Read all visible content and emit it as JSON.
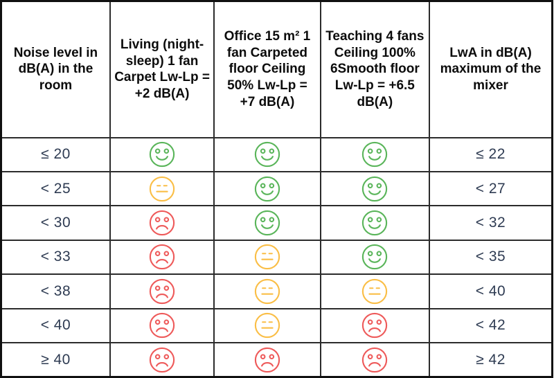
{
  "table": {
    "columns": [
      {
        "header": "Noise level in dB(A) in the room"
      },
      {
        "header": "Living (night-sleep) 1 fan Carpet Lw-Lp = +2 dB(A)"
      },
      {
        "header": "Office 15 m² 1 fan Carpeted floor Ceiling 50% Lw-Lp = +7 dB(A)"
      },
      {
        "header": "Teaching 4 fans Ceiling 100% 6Smooth floor Lw-Lp = +6.5 dB(A)"
      },
      {
        "header": "LwA in dB(A) maximum of the mixer"
      }
    ],
    "rows": [
      {
        "noise_level": "≤ 20",
        "living": "happy",
        "office": "happy",
        "teaching": "happy",
        "lwa_max": "≤ 22"
      },
      {
        "noise_level": "< 25",
        "living": "neutral",
        "office": "happy",
        "teaching": "happy",
        "lwa_max": "< 27"
      },
      {
        "noise_level": "< 30",
        "living": "sad",
        "office": "happy",
        "teaching": "happy",
        "lwa_max": "< 32"
      },
      {
        "noise_level": "< 33",
        "living": "sad",
        "office": "neutral",
        "teaching": "happy",
        "lwa_max": "< 35"
      },
      {
        "noise_level": "< 38",
        "living": "sad",
        "office": "neutral",
        "teaching": "neutral",
        "lwa_max": "< 40"
      },
      {
        "noise_level": "< 40",
        "living": "sad",
        "office": "neutral",
        "teaching": "sad",
        "lwa_max": "< 42"
      },
      {
        "noise_level": "≥ 40",
        "living": "sad",
        "office": "sad",
        "teaching": "sad",
        "lwa_max": "≥ 42"
      }
    ],
    "smiley_colors": {
      "happy": "#5ab55a",
      "neutral": "#fabe46",
      "sad": "#ee5a5a"
    },
    "smiley_icon_names": {
      "happy": "happy-face-icon",
      "neutral": "neutral-face-icon",
      "sad": "sad-face-icon"
    },
    "text_colors": {
      "header_text": "#0c0c0c",
      "value_text": "#2e3b52",
      "border": "#101010"
    }
  }
}
